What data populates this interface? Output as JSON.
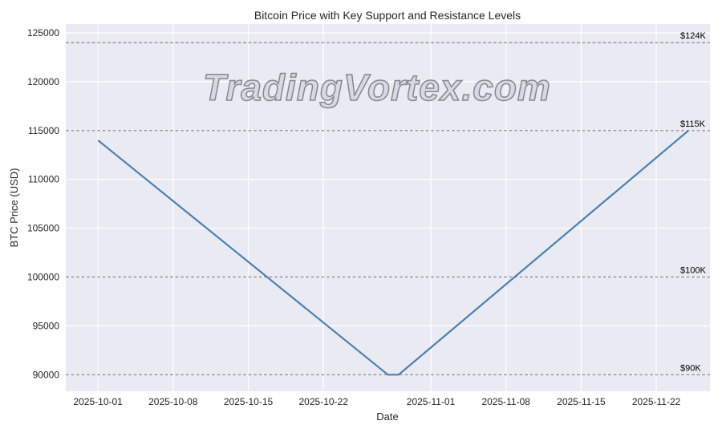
{
  "chart_data": {
    "type": "line",
    "title": "Bitcoin Price with Key Support and Resistance Levels",
    "xlabel": "Date",
    "ylabel": "BTC Price (USD)",
    "x_ticks": [
      "2025-10-01",
      "2025-10-08",
      "2025-10-15",
      "2025-10-22",
      "2025-11-01",
      "2025-11-08",
      "2025-11-15",
      "2025-11-22"
    ],
    "y_ticks": [
      90000,
      95000,
      100000,
      105000,
      110000,
      115000,
      120000,
      125000
    ],
    "xlim": [
      "2025-09-28",
      "2025-11-27"
    ],
    "ylim": [
      88300,
      125900
    ],
    "grid": true,
    "series": [
      {
        "x": [
          "2025-10-01",
          "2025-10-28",
          "2025-10-29",
          "2025-11-25"
        ],
        "y": [
          114000,
          90000,
          90000,
          115000
        ],
        "color": "#4682b4"
      }
    ],
    "levels": [
      {
        "value": 124000,
        "label": "$124K"
      },
      {
        "value": 115000,
        "label": "$115K"
      },
      {
        "value": 100000,
        "label": "$100K"
      },
      {
        "value": 90000,
        "label": "$90K"
      }
    ],
    "background": "#eaeaf2",
    "level_color": "#808080"
  },
  "watermark": "TradingVortex.com"
}
